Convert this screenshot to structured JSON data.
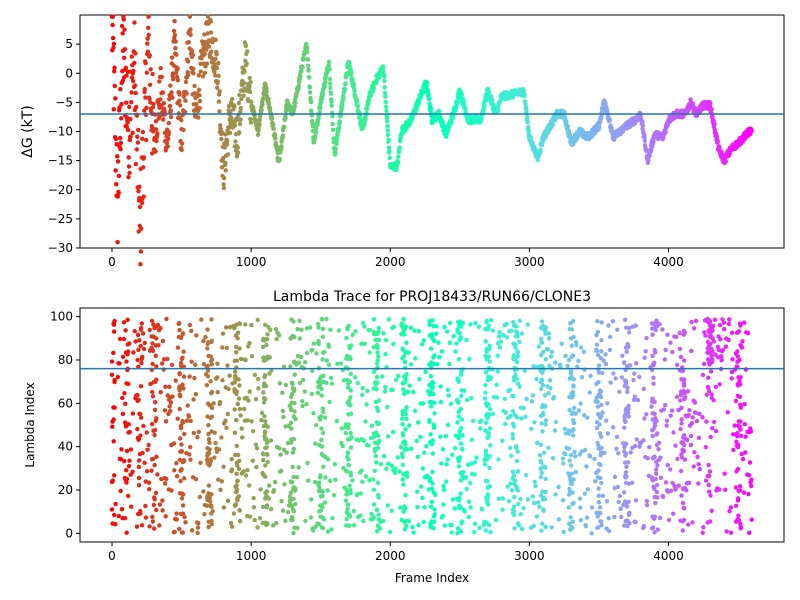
{
  "colors": {
    "hline": "#1f77b4",
    "colormap": "rainbow"
  },
  "chart_data": [
    {
      "type": "scatter",
      "title": "",
      "xlabel": "",
      "ylabel": "ΔG (kT)",
      "xlim": [
        -230,
        4830
      ],
      "ylim": [
        -30,
        10
      ],
      "xticks": [
        0,
        1000,
        2000,
        3000,
        4000
      ],
      "yticks": [
        -30,
        -25,
        -20,
        -15,
        -10,
        -5,
        0,
        5
      ],
      "hline": -7,
      "n_points": 4600,
      "color_by": "x",
      "segments": [
        [
          0,
          9
        ],
        [
          40,
          -22
        ],
        [
          80,
          5
        ],
        [
          120,
          -10
        ],
        [
          160,
          2
        ],
        [
          200,
          -27.5
        ],
        [
          260,
          5
        ],
        [
          300,
          -12
        ],
        [
          350,
          -3
        ],
        [
          400,
          -12
        ],
        [
          450,
          5
        ],
        [
          500,
          -12
        ],
        [
          560,
          8
        ],
        [
          600,
          -8
        ],
        [
          650,
          2
        ],
        [
          700,
          7
        ],
        [
          760,
          1
        ],
        [
          800,
          -17
        ],
        [
          850,
          -7
        ],
        [
          900,
          -11
        ],
        [
          960,
          2.5
        ],
        [
          1000,
          -5
        ],
        [
          1050,
          -10
        ],
        [
          1100,
          -2
        ],
        [
          1150,
          -8
        ],
        [
          1200,
          -15.5
        ],
        [
          1260,
          -5
        ],
        [
          1300,
          -7
        ],
        [
          1360,
          0.5
        ],
        [
          1400,
          5
        ],
        [
          1450,
          -12
        ],
        [
          1500,
          -5
        ],
        [
          1560,
          2
        ],
        [
          1600,
          -14
        ],
        [
          1650,
          -6
        ],
        [
          1700,
          2
        ],
        [
          1760,
          -5
        ],
        [
          1800,
          -10
        ],
        [
          1850,
          -4
        ],
        [
          1900,
          -1
        ],
        [
          1950,
          1
        ],
        [
          2000,
          -16
        ],
        [
          2050,
          -16
        ],
        [
          2080,
          -10
        ],
        [
          2150,
          -8
        ],
        [
          2200,
          -5
        ],
        [
          2260,
          -1.5
        ],
        [
          2300,
          -8
        ],
        [
          2350,
          -7
        ],
        [
          2400,
          -10.5
        ],
        [
          2460,
          -6.5
        ],
        [
          2500,
          -3
        ],
        [
          2560,
          -8
        ],
        [
          2650,
          -8
        ],
        [
          2700,
          -3
        ],
        [
          2760,
          -7
        ],
        [
          2800,
          -4
        ],
        [
          2900,
          -3.5
        ],
        [
          2960,
          -3
        ],
        [
          3000,
          -11
        ],
        [
          3060,
          -14.5
        ],
        [
          3100,
          -11
        ],
        [
          3150,
          -9
        ],
        [
          3200,
          -7
        ],
        [
          3250,
          -7
        ],
        [
          3300,
          -12
        ],
        [
          3360,
          -10
        ],
        [
          3420,
          -11
        ],
        [
          3500,
          -9
        ],
        [
          3540,
          -4.5
        ],
        [
          3600,
          -11
        ],
        [
          3700,
          -9
        ],
        [
          3760,
          -8
        ],
        [
          3800,
          -7
        ],
        [
          3850,
          -15
        ],
        [
          3900,
          -10.5
        ],
        [
          3960,
          -11
        ],
        [
          4000,
          -8
        ],
        [
          4050,
          -7
        ],
        [
          4120,
          -7
        ],
        [
          4160,
          -5
        ],
        [
          4200,
          -7
        ],
        [
          4250,
          -5.5
        ],
        [
          4300,
          -5.5
        ],
        [
          4360,
          -13
        ],
        [
          4400,
          -15
        ],
        [
          4450,
          -13
        ],
        [
          4500,
          -12
        ],
        [
          4580,
          -10
        ]
      ]
    },
    {
      "type": "scatter",
      "title": "Lambda Trace for PROJ18433/RUN66/CLONE3",
      "xlabel": "Frame Index",
      "ylabel": "Lambda Index",
      "xlim": [
        -230,
        4830
      ],
      "ylim": [
        -4,
        104
      ],
      "xticks": [
        0,
        1000,
        2000,
        3000,
        4000
      ],
      "yticks": [
        0,
        20,
        40,
        60,
        80,
        100
      ],
      "hline": 76,
      "n_points": 4600,
      "color_by": "x",
      "y_range": [
        0,
        99
      ],
      "dense_bands_at": [
        0,
        100,
        200,
        300,
        500,
        700,
        900,
        1100,
        1300,
        1500,
        1700,
        1900,
        2100,
        2300,
        2500,
        2700,
        2900,
        3100,
        3300,
        3500,
        3700,
        3900,
        4100,
        4300,
        4500
      ]
    }
  ]
}
